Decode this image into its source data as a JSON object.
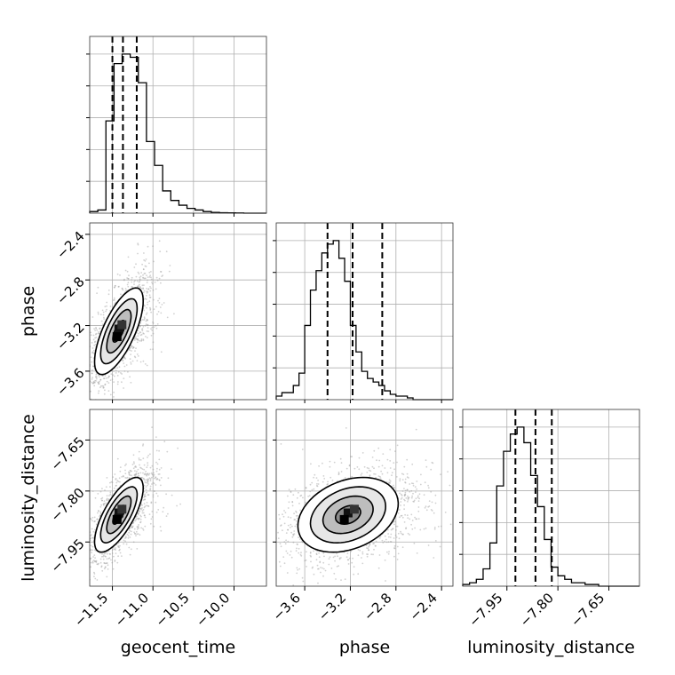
{
  "chart_data": {
    "type": "corner",
    "parameters": [
      "geocent_time",
      "phase",
      "luminosity_distance"
    ],
    "ranges": {
      "geocent_time": [
        -11.78,
        -9.6
      ],
      "phase": [
        -3.85,
        -2.3
      ],
      "luminosity_distance": [
        -8.08,
        -7.56
      ]
    },
    "ticks": {
      "geocent_time": [
        "-11.5",
        "-11.0",
        "-10.5",
        "-10.0"
      ],
      "phase": [
        "-3.6",
        "-3.2",
        "-2.8",
        "-2.4"
      ],
      "luminosity_distance": [
        "-7.95",
        "-7.80",
        "-7.65"
      ]
    },
    "quantiles": {
      "geocent_time": [
        -11.5,
        -11.37,
        -11.2
      ],
      "phase": [
        -3.4,
        -3.18,
        -2.92
      ],
      "luminosity_distance": [
        -7.925,
        -7.866,
        -7.818
      ]
    },
    "histograms": {
      "geocent_time": {
        "bins_start": -11.78,
        "bin_width": 0.1,
        "counts": [
          0.01,
          0.02,
          0.58,
          0.94,
          1.0,
          0.98,
          0.82,
          0.45,
          0.3,
          0.14,
          0.08,
          0.05,
          0.03,
          0.02,
          0.01,
          0.005,
          0.003,
          0.002,
          0.001,
          0.0,
          0.0,
          0.0
        ]
      },
      "phase": {
        "bins_start": -3.85,
        "bin_width": 0.05,
        "counts": [
          0.02,
          0.04,
          0.04,
          0.08,
          0.15,
          0.42,
          0.62,
          0.73,
          0.83,
          0.88,
          0.9,
          0.8,
          0.67,
          0.42,
          0.27,
          0.16,
          0.12,
          0.1,
          0.08,
          0.05,
          0.03,
          0.02,
          0.02,
          0.01,
          0.0,
          0.0,
          0.0,
          0.0,
          0.0,
          0.0,
          0.0
        ]
      },
      "luminosity_distance": {
        "bins_start": -8.08,
        "bin_width": 0.02,
        "counts": [
          0.01,
          0.02,
          0.04,
          0.1,
          0.25,
          0.58,
          0.78,
          0.88,
          0.92,
          0.83,
          0.64,
          0.46,
          0.27,
          0.11,
          0.06,
          0.04,
          0.02,
          0.02,
          0.01,
          0.01,
          0.0,
          0.0,
          0.0,
          0.0,
          0.0,
          0.0
        ]
      }
    },
    "pairs": [
      {
        "x": "geocent_time",
        "y": "phase",
        "center": [
          -11.42,
          -3.25
        ],
        "sigma": [
          0.15,
          0.19
        ],
        "rho": 0.7
      },
      {
        "x": "geocent_time",
        "y": "luminosity_distance",
        "center": [
          -11.42,
          -7.87
        ],
        "sigma": [
          0.15,
          0.055
        ],
        "rho": 0.72
      },
      {
        "x": "phase",
        "y": "luminosity_distance",
        "center": [
          -3.22,
          -7.87
        ],
        "sigma": [
          0.22,
          0.055
        ],
        "rho": 0.3
      }
    ],
    "contour_levels_sigma": [
      0.5,
      1.0,
      1.5,
      2.0
    ],
    "grid": true,
    "colors": {
      "line": "#000000",
      "grid": "#b0b0b0",
      "scatter": "#999999"
    }
  }
}
